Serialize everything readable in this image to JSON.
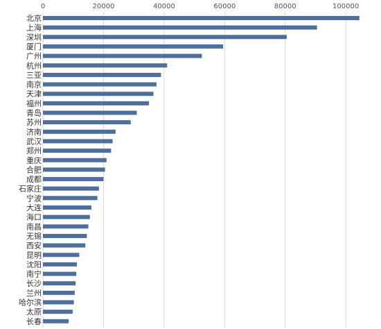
{
  "chart_data": {
    "type": "bar",
    "orientation": "horizontal",
    "title": "",
    "xlabel": "",
    "ylabel": "",
    "xlim": [
      0,
      105000
    ],
    "x_ticks": [
      0,
      20000,
      40000,
      60000,
      80000,
      100000
    ],
    "x_tick_labels": [
      "0",
      "20000",
      "40000",
      "60000",
      "80000",
      "100000"
    ],
    "x_axis_position": "top",
    "grid": true,
    "bar_color": "#4e6f9b",
    "grid_color": "#d9d9d9",
    "categories": [
      "北京",
      "上海",
      "深圳",
      "厦门",
      "广州",
      "杭州",
      "三亚",
      "南京",
      "天津",
      "福州",
      "青岛",
      "苏州",
      "济南",
      "武汉",
      "郑州",
      "重庆",
      "合肥",
      "成都",
      "石家庄",
      "宁波",
      "大连",
      "海口",
      "南昌",
      "无锡",
      "西安",
      "昆明",
      "沈阳",
      "南宁",
      "长沙",
      "兰州",
      "哈尔滨",
      "太原",
      "长春"
    ],
    "values": [
      104500,
      90500,
      80500,
      59500,
      52500,
      41000,
      39000,
      37500,
      36500,
      35000,
      31000,
      29000,
      24000,
      23000,
      22500,
      21000,
      20500,
      20000,
      18500,
      18000,
      16000,
      15500,
      15000,
      14500,
      14000,
      12000,
      11200,
      11000,
      10800,
      10500,
      10200,
      9800,
      8500
    ]
  }
}
